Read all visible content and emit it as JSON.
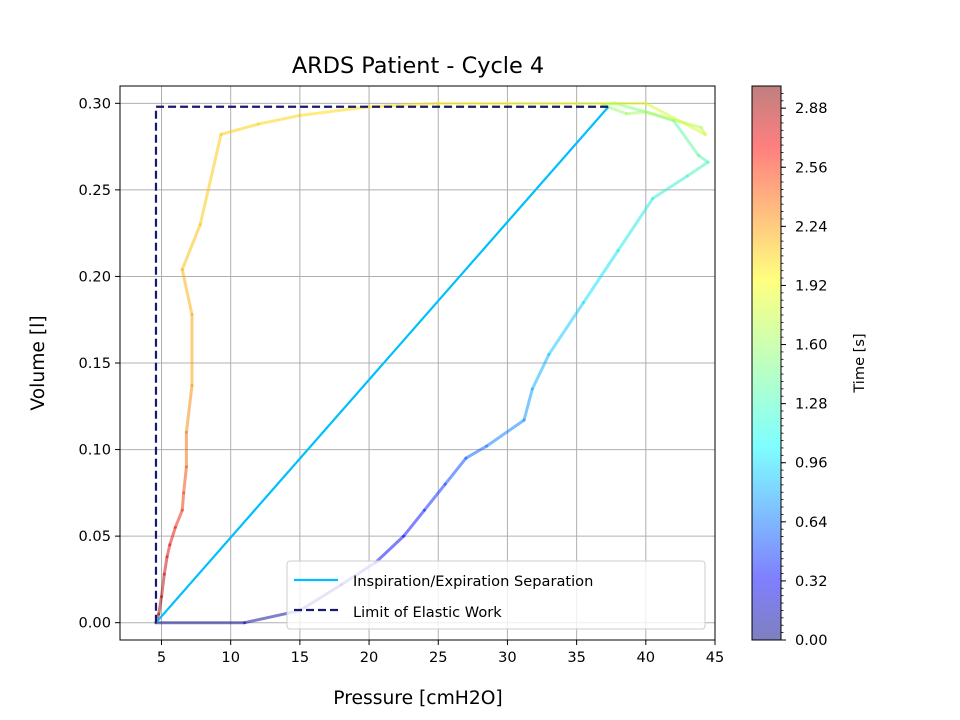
{
  "chart_data": {
    "type": "line",
    "title": "ARDS Patient - Cycle 4",
    "xlabel": "Pressure [cmH2O]",
    "ylabel": "Volume [l]",
    "xlim": [
      2,
      45
    ],
    "ylim": [
      -0.01,
      0.31
    ],
    "xticks": [
      5,
      10,
      15,
      20,
      25,
      30,
      35,
      40,
      45
    ],
    "yticks": [
      0.0,
      0.05,
      0.1,
      0.15,
      0.2,
      0.25,
      0.3
    ],
    "ytick_labels": [
      "0.00",
      "0.05",
      "0.10",
      "0.15",
      "0.20",
      "0.25",
      "0.30"
    ],
    "grid": true,
    "legend_position": "lower-right",
    "series": [
      {
        "name": "Inspiration/Expiration Separation",
        "color": "#00bfff",
        "style": "solid",
        "x": [
          4.6,
          37.3
        ],
        "y": [
          0.0,
          0.298
        ]
      },
      {
        "name": "Limit of Elastic Work",
        "color": "#191970",
        "style": "dashed",
        "x": [
          4.6,
          4.6,
          37.3
        ],
        "y": [
          0.0,
          0.298,
          0.298
        ]
      },
      {
        "name": "",
        "style": "time-colored",
        "colormap": "jet",
        "x": [
          4.6,
          11.0,
          15.0,
          18.0,
          20.5,
          22.5,
          24.0,
          25.5,
          27.0,
          28.5,
          31.2,
          31.8,
          33.0,
          35.5,
          38.0,
          40.5,
          43.0,
          44.5,
          43.8,
          42.0,
          40.0,
          37.8,
          36.9,
          38.6,
          40.0,
          44.0,
          44.3,
          40.0,
          35.0,
          30.0,
          25.0,
          20.0,
          15.0,
          12.0,
          9.3,
          7.8,
          6.5,
          7.2,
          7.2,
          6.8,
          6.8,
          6.6,
          6.5,
          6.0,
          5.6,
          5.4,
          5.2,
          5.0,
          4.8,
          4.6
        ],
        "y": [
          0.0,
          0.0,
          0.007,
          0.022,
          0.035,
          0.05,
          0.065,
          0.08,
          0.095,
          0.102,
          0.117,
          0.135,
          0.155,
          0.185,
          0.215,
          0.245,
          0.258,
          0.266,
          0.27,
          0.29,
          0.295,
          0.3,
          0.299,
          0.294,
          0.295,
          0.286,
          0.282,
          0.3,
          0.3,
          0.3,
          0.3,
          0.298,
          0.293,
          0.288,
          0.282,
          0.23,
          0.204,
          0.178,
          0.137,
          0.11,
          0.09,
          0.075,
          0.065,
          0.055,
          0.045,
          0.038,
          0.028,
          0.015,
          0.005,
          0.0
        ],
        "t": [
          0.0,
          0.05,
          0.12,
          0.2,
          0.28,
          0.36,
          0.44,
          0.52,
          0.6,
          0.68,
          0.76,
          0.84,
          0.92,
          1.0,
          1.08,
          1.16,
          1.24,
          1.3,
          1.34,
          1.4,
          1.46,
          1.52,
          1.56,
          1.6,
          1.65,
          1.7,
          1.74,
          1.8,
          1.86,
          1.9,
          1.95,
          1.98,
          2.0,
          2.02,
          2.04,
          2.06,
          2.1,
          2.15,
          2.2,
          2.3,
          2.4,
          2.5,
          2.55,
          2.6,
          2.7,
          2.78,
          2.85,
          2.9,
          2.96,
          3.0
        ]
      }
    ],
    "colorbar": {
      "label": "Time [s]",
      "min": 0.0,
      "max": 3.0,
      "ticks": [
        0.0,
        0.32,
        0.64,
        0.96,
        1.28,
        1.6,
        1.92,
        2.24,
        2.56,
        2.88
      ],
      "tick_labels": [
        "0.00",
        "0.32",
        "0.64",
        "0.96",
        "1.28",
        "1.60",
        "1.92",
        "2.24",
        "2.56",
        "2.88"
      ]
    }
  }
}
